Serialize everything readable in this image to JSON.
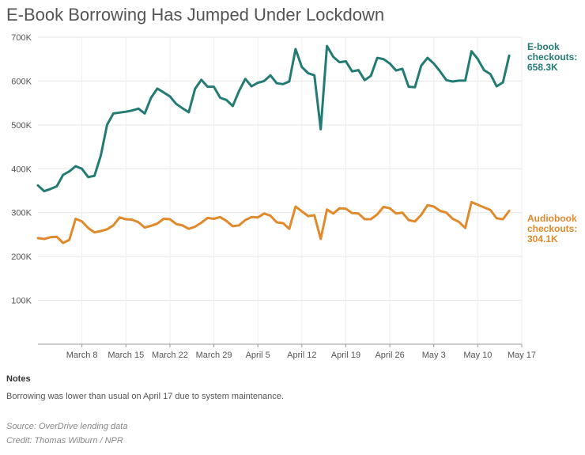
{
  "title": "E-Book Borrowing Has Jumped Under Lockdown",
  "notes": {
    "heading": "Notes",
    "text": "Borrowing was lower than usual on April 17 due to system maintenance."
  },
  "source": "Source: OverDrive lending data",
  "credit": "Credit: Thomas Wilburn / NPR",
  "chart_data": {
    "type": "line",
    "x_start": "March 1",
    "x_ticks": [
      {
        "label": "March 8",
        "day": 7
      },
      {
        "label": "March 15",
        "day": 14
      },
      {
        "label": "March 22",
        "day": 21
      },
      {
        "label": "March 29",
        "day": 28
      },
      {
        "label": "April 5",
        "day": 35
      },
      {
        "label": "April 12",
        "day": 42
      },
      {
        "label": "April 19",
        "day": 49
      },
      {
        "label": "April 26",
        "day": 56
      },
      {
        "label": "May 3",
        "day": 63
      },
      {
        "label": "May 10",
        "day": 70
      },
      {
        "label": "May 17",
        "day": 77
      }
    ],
    "y_ticks": [
      {
        "label": "100K",
        "value": 100000
      },
      {
        "label": "200K",
        "value": 200000
      },
      {
        "label": "300K",
        "value": 300000
      },
      {
        "label": "400K",
        "value": 400000
      },
      {
        "label": "500K",
        "value": 500000
      },
      {
        "label": "600K",
        "value": 600000
      },
      {
        "label": "700K",
        "value": 700000
      }
    ],
    "ylim": [
      0,
      700000
    ],
    "grid": true,
    "series": [
      {
        "name": "E-book checkouts",
        "end_label_lines": [
          "E-book",
          "checkouts:",
          "658.3K"
        ],
        "color": "#237b74",
        "values": [
          362,
          349,
          354,
          360,
          386,
          394,
          406,
          400,
          381,
          384,
          430,
          500,
          526,
          528,
          530,
          533,
          537,
          526,
          562,
          583,
          574,
          565,
          548,
          538,
          529,
          582,
          603,
          587,
          587,
          562,
          557,
          543,
          577,
          605,
          588,
          596,
          600,
          613,
          595,
          593,
          599,
          673,
          632,
          618,
          613,
          490,
          680,
          655,
          643,
          645,
          622,
          625,
          602,
          612,
          653,
          650,
          640,
          624,
          628,
          587,
          586,
          635,
          653,
          640,
          622,
          602,
          599,
          601,
          601,
          668,
          650,
          625,
          616,
          588,
          597,
          658
        ]
      },
      {
        "name": "Audiobook checkouts",
        "end_label_lines": [
          "Audiobook",
          "checkouts:",
          "304.1K"
        ],
        "color": "#e08a2c",
        "values": [
          242,
          240,
          244,
          245,
          231,
          238,
          286,
          280,
          265,
          255,
          258,
          262,
          271,
          289,
          285,
          284,
          278,
          266,
          270,
          275,
          286,
          285,
          274,
          271,
          263,
          268,
          277,
          288,
          286,
          290,
          281,
          269,
          271,
          283,
          290,
          289,
          298,
          293,
          278,
          276,
          263,
          314,
          303,
          292,
          294,
          240,
          307,
          298,
          310,
          309,
          299,
          298,
          285,
          285,
          296,
          313,
          310,
          298,
          300,
          283,
          280,
          295,
          317,
          314,
          304,
          300,
          286,
          279,
          265,
          324,
          318,
          312,
          306,
          287,
          285,
          304
        ]
      }
    ]
  }
}
